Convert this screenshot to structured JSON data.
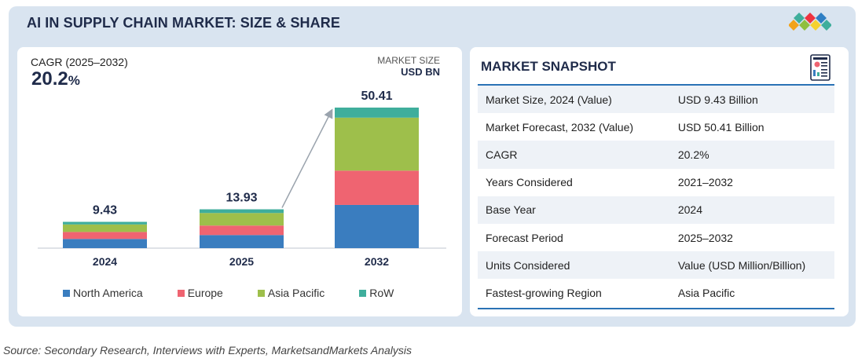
{
  "title": "AI IN SUPPLY CHAIN MARKET: SIZE & SHARE",
  "cagr": {
    "label": "CAGR (2025–2032)",
    "value": "20.2",
    "unit": "%"
  },
  "market_size": {
    "label": "MARKET SIZE",
    "unit": "USD BN"
  },
  "colors": {
    "north_america": "#3a7dbf",
    "europe": "#ef6471",
    "asia_pacific": "#9ebf4b",
    "row": "#3fae9c",
    "title": "#1f2b4a",
    "table_rule": "#2a72b5"
  },
  "chart_data": {
    "type": "bar",
    "stacked": true,
    "title": "AI IN SUPPLY CHAIN MARKET: SIZE & SHARE",
    "ylabel": "USD BN",
    "categories": [
      "2024",
      "2025",
      "2032"
    ],
    "totals": [
      "9.43",
      "13.93",
      "50.41"
    ],
    "total_values": [
      9.43,
      13.93,
      50.41
    ],
    "series": [
      {
        "name": "North America",
        "values": [
          3.3,
          4.7,
          15.5
        ]
      },
      {
        "name": "Europe",
        "values": [
          2.5,
          3.4,
          12.3
        ]
      },
      {
        "name": "Asia Pacific",
        "values": [
          2.7,
          4.5,
          19.0
        ]
      },
      {
        "name": "RoW",
        "values": [
          0.93,
          1.33,
          3.61
        ]
      }
    ],
    "ylim": [
      0,
      50.41
    ],
    "annotation": "growth arrow from 2025 to 2032",
    "legend_position": "bottom"
  },
  "snapshot": {
    "title": "MARKET SNAPSHOT",
    "rows": [
      {
        "label": "Market Size, 2024 (Value)",
        "value": "USD 9.43 Billion"
      },
      {
        "label": "Market Forecast, 2032 (Value)",
        "value": "USD 50.41 Billion"
      },
      {
        "label": "CAGR",
        "value": "20.2%"
      },
      {
        "label": "Years Considered",
        "value": "2021–2032"
      },
      {
        "label": "Base Year",
        "value": "2024"
      },
      {
        "label": "Forecast Period",
        "value": "2025–2032"
      },
      {
        "label": "Units Considered",
        "value": "Value (USD Million/Billion)"
      },
      {
        "label": "Fastest-growing Region",
        "value": "Asia Pacific"
      }
    ]
  },
  "source": "Source: Secondary Research, Interviews with Experts, MarketsandMarkets Analysis",
  "icons": {
    "logo": "brand-diamonds-logo",
    "report": "report-document-icon"
  }
}
